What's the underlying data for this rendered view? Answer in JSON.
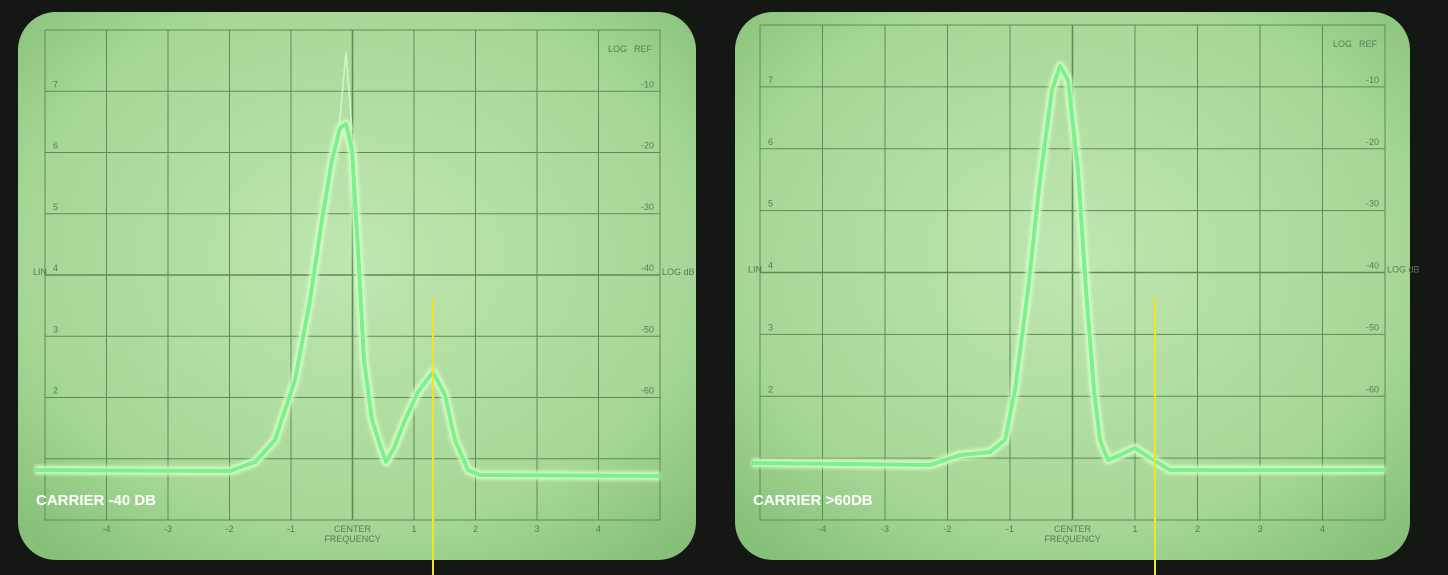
{
  "scale": {
    "x_labels": [
      "-4",
      "-3",
      "-2",
      "-1",
      "CENTER",
      "1",
      "2",
      "3",
      "4"
    ],
    "center_sub": "FREQUENCY",
    "left_labels": [
      "7",
      "6",
      "5",
      "4",
      "3",
      "2"
    ],
    "right_labels": [
      "-10",
      "-20",
      "-30",
      "-40",
      "-50",
      "-60"
    ],
    "left_axis": "LIN",
    "right_axis": "LOG dB",
    "corner": [
      "LOG",
      "REF"
    ]
  },
  "panels": [
    {
      "caption": "CARRIER -40 DB"
    },
    {
      "caption": "CARRIER >60DB"
    }
  ]
}
